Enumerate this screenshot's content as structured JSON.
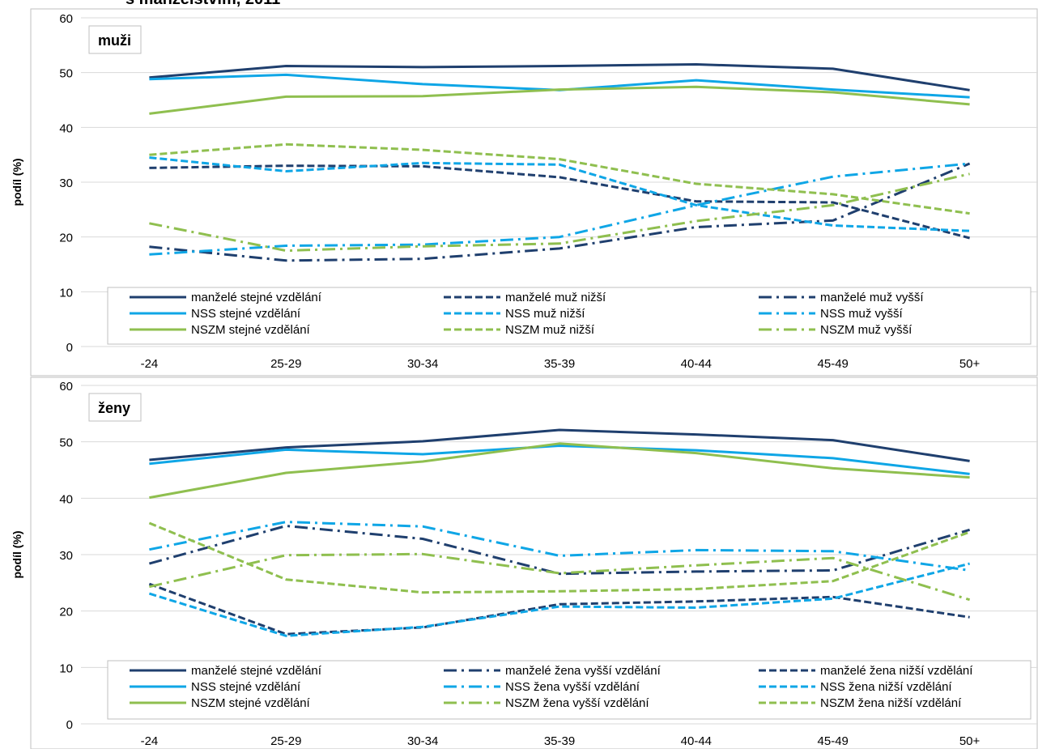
{
  "title_partial": "s manželstvím, 2011",
  "colors": {
    "manzele": "#1f3f6e",
    "nss": "#0fa6e6",
    "nszm": "#8fbf4f",
    "grid": "#d9d9d9",
    "frame": "#bfbfbf",
    "axis_text": "#000000"
  },
  "chart_data": [
    {
      "type": "line",
      "panel_label": "muži",
      "ylabel": "podíl (%)",
      "ylim": [
        0,
        60
      ],
      "yticks": [
        "0",
        "10",
        "20",
        "30",
        "40",
        "50",
        "60"
      ],
      "categories": [
        "-24",
        "25-29",
        "30-34",
        "35-39",
        "40-44",
        "45-49",
        "50+"
      ],
      "legend_position": "bottom",
      "series": [
        {
          "name": "manželé stejné vzdělání",
          "color": "manzele",
          "dash": "solid",
          "values": [
            49.1,
            51.2,
            51.0,
            51.2,
            51.5,
            50.7,
            46.8
          ]
        },
        {
          "name": "manželé muž nižší",
          "color": "manzele",
          "dash": "dash",
          "values": [
            32.6,
            33.0,
            32.9,
            30.9,
            26.5,
            26.3,
            19.8
          ]
        },
        {
          "name": "manželé muž vyšší",
          "color": "manzele",
          "dash": "dashdot",
          "values": [
            18.2,
            15.7,
            16.0,
            17.9,
            21.8,
            23.0,
            33.4
          ]
        },
        {
          "name": "NSS stejné vzdělání",
          "color": "nss",
          "dash": "solid",
          "values": [
            48.8,
            49.6,
            47.9,
            46.8,
            48.6,
            46.9,
            45.5
          ]
        },
        {
          "name": "NSS muž nižší",
          "color": "nss",
          "dash": "dash",
          "values": [
            34.5,
            32.0,
            33.5,
            33.2,
            25.8,
            22.1,
            21.1
          ]
        },
        {
          "name": "NSS muž vyšší",
          "color": "nss",
          "dash": "dashdot",
          "values": [
            16.8,
            18.4,
            18.6,
            20.0,
            25.8,
            31.0,
            33.4
          ]
        },
        {
          "name": "NSZM stejné vzdělání",
          "color": "nszm",
          "dash": "solid",
          "values": [
            42.5,
            45.6,
            45.7,
            46.9,
            47.4,
            46.4,
            44.2
          ]
        },
        {
          "name": "NSZM muž nižší",
          "color": "nszm",
          "dash": "dash",
          "values": [
            35.0,
            36.9,
            35.9,
            34.2,
            29.7,
            27.8,
            24.3
          ]
        },
        {
          "name": "NSZM muž vyšší",
          "color": "nszm",
          "dash": "dashdot",
          "values": [
            22.5,
            17.5,
            18.3,
            18.8,
            22.9,
            25.8,
            31.5
          ]
        }
      ]
    },
    {
      "type": "line",
      "panel_label": "ženy",
      "ylabel": "podíl (%)",
      "ylim": [
        0,
        60
      ],
      "yticks": [
        "0",
        "10",
        "20",
        "30",
        "40",
        "50",
        "60"
      ],
      "categories": [
        "-24",
        "25-29",
        "30-34",
        "35-39",
        "40-44",
        "45-49",
        "50+"
      ],
      "legend_position": "bottom",
      "series": [
        {
          "name": "manželé stejné vzdělání",
          "color": "manzele",
          "dash": "solid",
          "values": [
            46.8,
            49.0,
            50.1,
            52.1,
            51.3,
            50.3,
            46.6
          ]
        },
        {
          "name": "manželé žena vyšší vzdělání",
          "color": "manzele",
          "dash": "dashdot",
          "values": [
            28.4,
            35.1,
            32.8,
            26.6,
            27.0,
            27.2,
            34.4
          ]
        },
        {
          "name": "manželé žena nižší vzdělání",
          "color": "manzele",
          "dash": "dash",
          "values": [
            24.8,
            15.9,
            17.1,
            21.2,
            21.7,
            22.5,
            18.9
          ]
        },
        {
          "name": "NSS stejné vzdělání",
          "color": "nss",
          "dash": "solid",
          "values": [
            46.1,
            48.6,
            47.8,
            49.3,
            48.5,
            47.1,
            44.3
          ]
        },
        {
          "name": "NSS žena vyšší vzdělání",
          "color": "nss",
          "dash": "dashdot",
          "values": [
            30.9,
            35.8,
            35.0,
            29.8,
            30.8,
            30.6,
            27.2
          ]
        },
        {
          "name": "NSS žena nižší vzdělání",
          "color": "nss",
          "dash": "dash",
          "values": [
            23.1,
            15.6,
            17.2,
            20.8,
            20.6,
            22.2,
            28.4
          ]
        },
        {
          "name": "NSZM stejné vzdělání",
          "color": "nszm",
          "dash": "solid",
          "values": [
            40.1,
            44.5,
            46.5,
            49.7,
            48.0,
            45.3,
            43.7
          ]
        },
        {
          "name": "NSZM žena vyšší vzdělání",
          "color": "nszm",
          "dash": "dashdot",
          "values": [
            24.3,
            29.9,
            30.1,
            26.7,
            28.1,
            29.4,
            22.0
          ]
        },
        {
          "name": "NSZM žena nižší vzdělání",
          "color": "nszm",
          "dash": "dash",
          "values": [
            35.6,
            25.6,
            23.3,
            23.5,
            23.9,
            25.3,
            34.0
          ]
        }
      ]
    }
  ]
}
